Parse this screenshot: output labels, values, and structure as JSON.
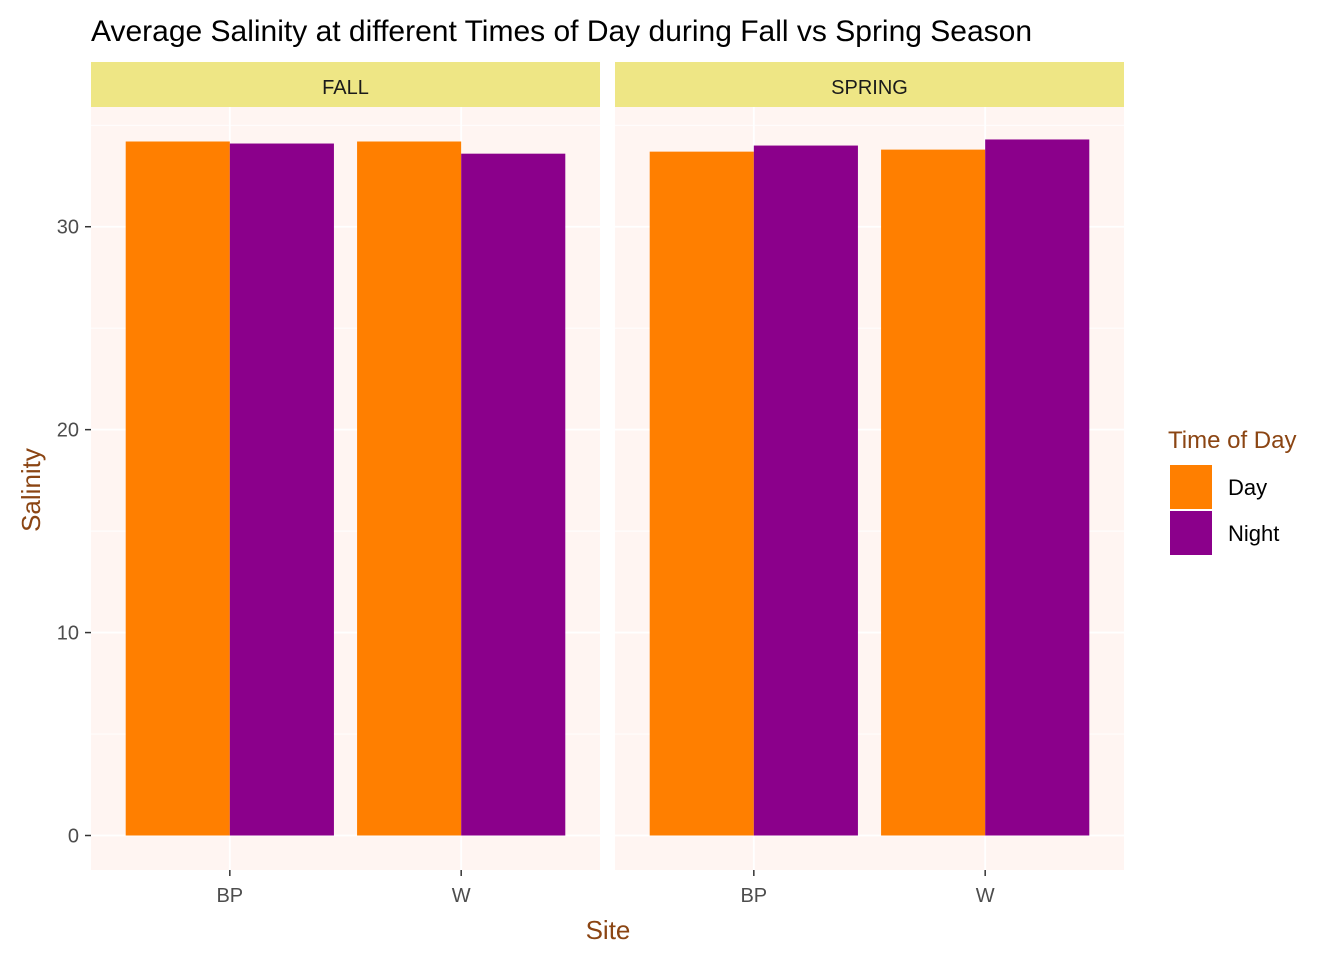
{
  "chart_data": {
    "type": "bar",
    "title": "Average Salinity at different Times of Day during Fall vs Spring Season",
    "xlabel": "Site",
    "ylabel": "Salinity",
    "ylim": [
      -1.7,
      35.9
    ],
    "yticks": [
      0,
      10,
      20,
      30
    ],
    "grid": true,
    "legend": {
      "title": "Time of Day",
      "placement": "right",
      "entries": [
        {
          "label": "Day",
          "color": "#FF7F00"
        },
        {
          "label": "Night",
          "color": "#8B008B"
        }
      ]
    },
    "categories": [
      "BP",
      "W"
    ],
    "facets": [
      {
        "label": "FALL",
        "series": [
          {
            "name": "Day",
            "values": [
              34.2,
              34.2
            ]
          },
          {
            "name": "Night",
            "values": [
              34.1,
              33.6
            ]
          }
        ]
      },
      {
        "label": "SPRING",
        "series": [
          {
            "name": "Day",
            "values": [
              33.7,
              33.8
            ]
          },
          {
            "name": "Night",
            "values": [
              34.0,
              34.3
            ]
          }
        ]
      }
    ],
    "colors": {
      "panel_background": "#FFF5F2",
      "strip_background": "#EEE685",
      "axis_title": "#8B4513",
      "tick_label": "#4D4D4D",
      "grid_line": "#FFFFFF"
    }
  }
}
